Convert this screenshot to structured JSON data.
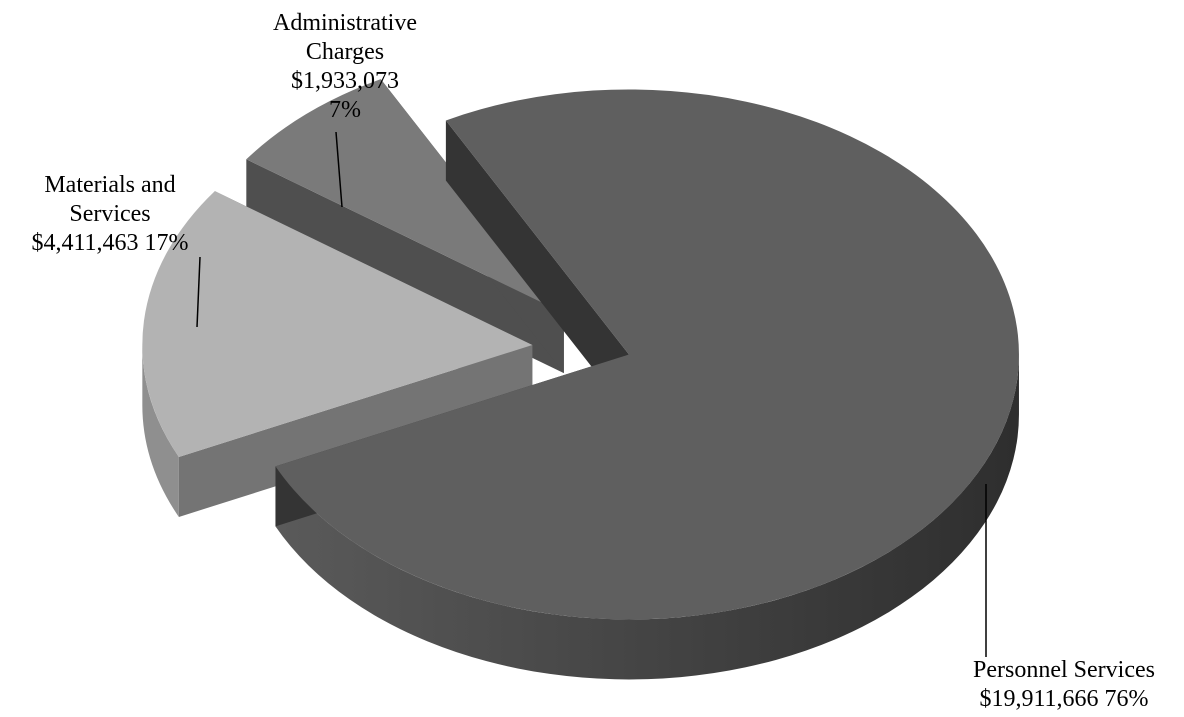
{
  "chart_data": {
    "type": "pie",
    "title": "",
    "style": "3d-exploded",
    "categories": [
      "Personnel Services",
      "Materials and Services",
      "Administrative Charges"
    ],
    "values": [
      19911666,
      4411463,
      1933073
    ],
    "percentages": [
      76,
      17,
      7
    ],
    "colors": [
      "#5f5f5f",
      "#b3b3b3",
      "#7a7a7a"
    ],
    "labels": [
      {
        "lines": [
          "Personnel Services",
          "$19,911,666  76%"
        ]
      },
      {
        "lines": [
          "Materials and",
          "Services",
          "$4,411,463  17%"
        ]
      },
      {
        "lines": [
          "Administrative",
          "Charges",
          "$1,933,073",
          "7%"
        ]
      }
    ]
  }
}
